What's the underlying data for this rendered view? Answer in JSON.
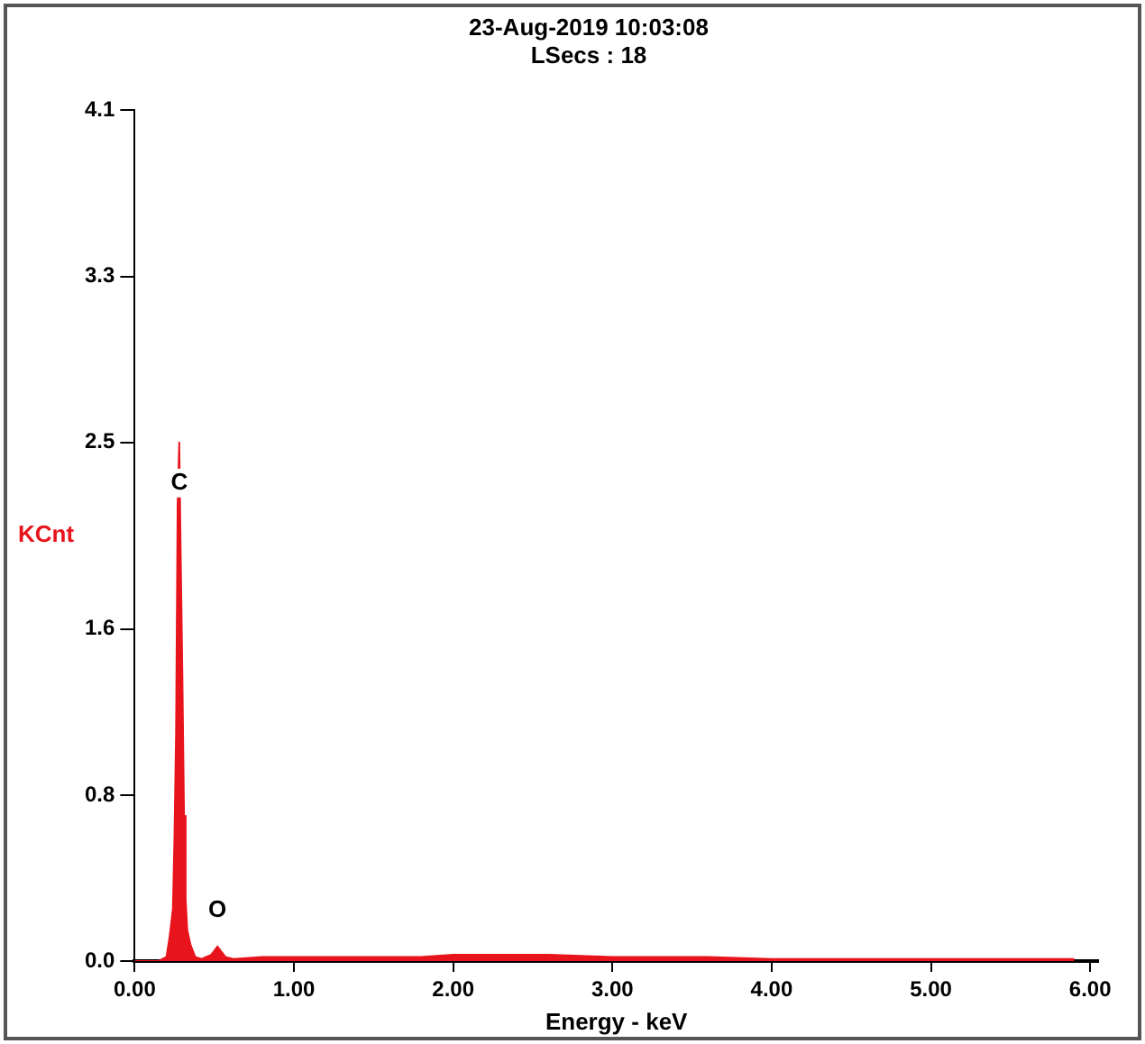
{
  "chart_data": {
    "type": "area",
    "title": "23-Aug-2019 10:03:08",
    "subtitle": "LSecs : 18",
    "xlabel": "Energy - keV",
    "ylabel": "KCnt",
    "x": [
      0,
      0.15,
      0.2,
      0.22,
      0.24,
      0.25,
      0.26,
      0.27,
      0.28,
      0.29,
      0.3,
      0.31,
      0.32,
      0.33,
      0.35,
      0.38,
      0.42,
      0.48,
      0.5,
      0.52,
      0.54,
      0.57,
      0.62,
      0.8,
      1.0,
      1.2,
      1.5,
      1.8,
      2.0,
      2.3,
      2.6,
      3.0,
      3.3,
      3.6,
      4.0,
      4.5,
      5.0,
      5.5,
      5.9
    ],
    "series": [
      {
        "color": "#e8141c",
        "values": [
          0,
          0,
          0.02,
          0.12,
          0.25,
          0.6,
          1.1,
          2.2,
          2.5,
          1.9,
          1.35,
          0.7,
          0.3,
          0.15,
          0.08,
          0.02,
          0.01,
          0.03,
          0.05,
          0.07,
          0.05,
          0.02,
          0.01,
          0.02,
          0.02,
          0.02,
          0.02,
          0.02,
          0.03,
          0.03,
          0.03,
          0.02,
          0.02,
          0.02,
          0.01,
          0.01,
          0.01,
          0.01,
          0.01
        ]
      }
    ],
    "xlim": [
      0,
      6.05
    ],
    "xticks": [
      {
        "value": 0,
        "label": "0.00"
      },
      {
        "value": 1,
        "label": "1.00"
      },
      {
        "value": 2,
        "label": "2.00"
      },
      {
        "value": 3,
        "label": "3.00"
      },
      {
        "value": 4,
        "label": "4.00"
      },
      {
        "value": 5,
        "label": "5.00"
      },
      {
        "value": 6,
        "label": "6.00"
      }
    ],
    "ylim": [
      0,
      4.1
    ],
    "yticks": [
      {
        "value": 0,
        "label": "0.0"
      },
      {
        "value": 0.8,
        "label": "0.8"
      },
      {
        "value": 1.6,
        "label": "1.6"
      },
      {
        "value": 2.5,
        "label": "2.5"
      },
      {
        "value": 3.3,
        "label": "3.3"
      },
      {
        "value": 4.1,
        "label": "4.1"
      }
    ],
    "annotations": [
      {
        "text": "C",
        "x": 0.28,
        "y": 2.13
      },
      {
        "text": "O",
        "x": 0.52,
        "y": 0.07
      }
    ],
    "grid": false,
    "legend": false,
    "marker": "none"
  }
}
